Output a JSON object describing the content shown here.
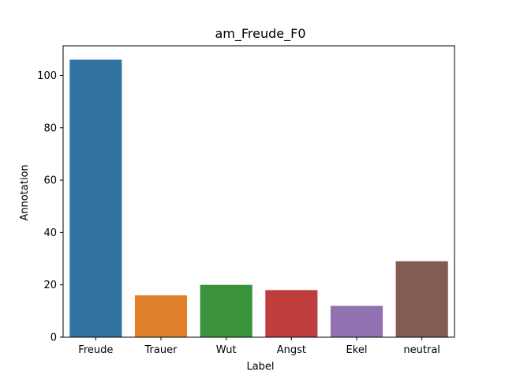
{
  "chart_data": {
    "type": "bar",
    "title": "am_Freude_F0",
    "xlabel": "Label",
    "ylabel": "Annotation",
    "categories": [
      "Freude",
      "Trauer",
      "Wut",
      "Angst",
      "Ekel",
      "neutral"
    ],
    "values": [
      106,
      16,
      20,
      18,
      12,
      29
    ],
    "colors": [
      "#3274a1",
      "#e1812c",
      "#3a923a",
      "#c03d3e",
      "#9372b2",
      "#845b53"
    ],
    "ylim": [
      0,
      111.3
    ],
    "yticks": [
      0,
      20,
      40,
      60,
      80,
      100
    ],
    "grid": false,
    "legend": "none"
  }
}
